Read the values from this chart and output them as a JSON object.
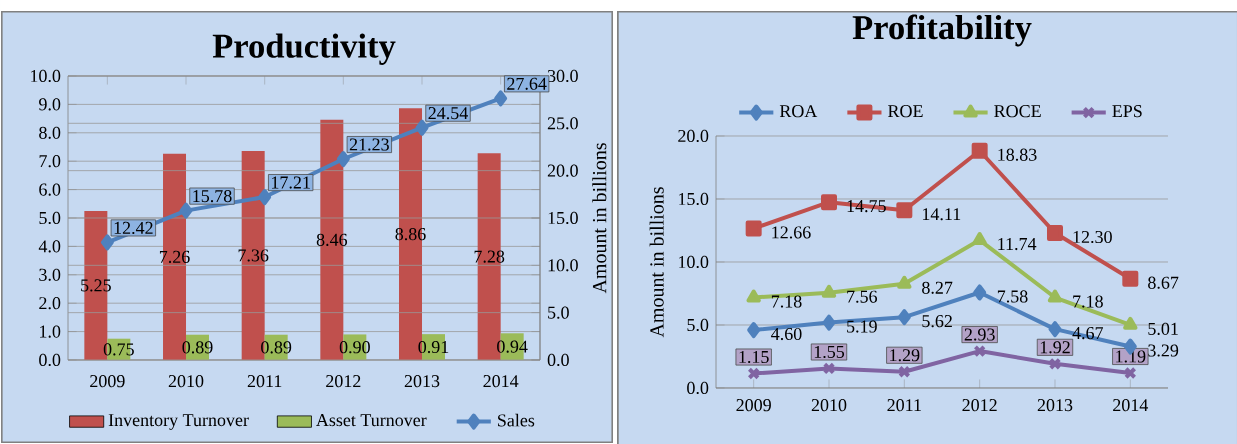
{
  "chart_data": [
    {
      "type": "bar",
      "title": "Productivity",
      "y2label": "Amount in billions",
      "categories": [
        "2009",
        "2010",
        "2011",
        "2012",
        "2013",
        "2014"
      ],
      "series": [
        {
          "name": "Inventory Turnover",
          "color": "#c0504d",
          "values": [
            5.25,
            7.26,
            7.36,
            8.46,
            8.86,
            7.28
          ],
          "value_labels": [
            "5.25",
            "7.26",
            "7.36",
            "8.46",
            "8.86",
            "7.28"
          ]
        },
        {
          "name": "Asset Turnover",
          "color": "#9bbb59",
          "values": [
            0.75,
            0.89,
            0.89,
            0.9,
            0.91,
            0.94
          ],
          "value_labels": [
            "0.75",
            "0.89",
            "0.89",
            "0.90",
            "0.91",
            "0.94"
          ]
        },
        {
          "name": "Sales",
          "type": "line",
          "axis": "y2",
          "marker": "diamond",
          "color": "#4f81bd",
          "values": [
            12.42,
            15.78,
            17.21,
            21.23,
            24.54,
            27.64
          ],
          "value_labels": [
            "12.42",
            "15.78",
            "17.21",
            "21.23",
            "24.54",
            "27.64"
          ]
        }
      ],
      "ylim": [
        0,
        10
      ],
      "yticks": [
        {
          "value": 0,
          "label": "0.0"
        },
        {
          "value": 1,
          "label": "1.0"
        },
        {
          "value": 2,
          "label": "2.0"
        },
        {
          "value": 3,
          "label": "3.0"
        },
        {
          "value": 4,
          "label": "4.0"
        },
        {
          "value": 5,
          "label": "5.0"
        },
        {
          "value": 6,
          "label": "6.0"
        },
        {
          "value": 7,
          "label": "7.0"
        },
        {
          "value": 8,
          "label": "8.0"
        },
        {
          "value": 9,
          "label": "9.0"
        },
        {
          "value": 10,
          "label": "10.0"
        }
      ],
      "y2lim": [
        0,
        30
      ],
      "y2ticks": [
        {
          "value": 0,
          "label": "0.0"
        },
        {
          "value": 5,
          "label": "5.0"
        },
        {
          "value": 10,
          "label": "10.0"
        },
        {
          "value": 15,
          "label": "15.0"
        },
        {
          "value": 20,
          "label": "20.0"
        },
        {
          "value": 25,
          "label": "25.0"
        },
        {
          "value": 30,
          "label": "30.0"
        }
      ],
      "grid": "y",
      "legend": "bottom"
    },
    {
      "type": "line",
      "title": "Profitability",
      "ylabel": "Amount in billions",
      "categories": [
        "2009",
        "2010",
        "2011",
        "2012",
        "2013",
        "2014"
      ],
      "series": [
        {
          "name": "ROA",
          "color": "#4f81bd",
          "marker": "diamond",
          "values": [
            4.6,
            5.19,
            5.62,
            7.58,
            4.67,
            3.29
          ],
          "value_labels": [
            "4.60",
            "5.19",
            "5.62",
            "7.58",
            "4.67",
            "3.29"
          ]
        },
        {
          "name": "ROE",
          "color": "#c0504d",
          "marker": "square",
          "values": [
            12.66,
            14.75,
            14.11,
            18.83,
            12.3,
            8.67
          ],
          "value_labels": [
            "12.66",
            "14.75",
            "14.11",
            "18.83",
            "12.30",
            "8.67"
          ]
        },
        {
          "name": "ROCE",
          "color": "#9bbb59",
          "marker": "triangle",
          "values": [
            7.18,
            7.56,
            8.27,
            11.74,
            7.18,
            5.01
          ],
          "value_labels": [
            "7.18",
            "7.56",
            "8.27",
            "11.74",
            "7.18",
            "5.01"
          ]
        },
        {
          "name": "EPS",
          "color": "#8064a2",
          "marker": "cross",
          "values": [
            1.15,
            1.55,
            1.29,
            2.93,
            1.92,
            1.19
          ],
          "value_labels": [
            "1.15",
            "1.55",
            "1.29",
            "2.93",
            "1.92",
            "1.19"
          ]
        }
      ],
      "ylim": [
        0,
        20
      ],
      "yticks": [
        {
          "value": 0,
          "label": "0.0"
        },
        {
          "value": 5,
          "label": "5.0"
        },
        {
          "value": 10,
          "label": "10.0"
        },
        {
          "value": 15,
          "label": "15.0"
        },
        {
          "value": 20,
          "label": "20.0"
        }
      ],
      "grid": "y",
      "legend": "top"
    }
  ]
}
